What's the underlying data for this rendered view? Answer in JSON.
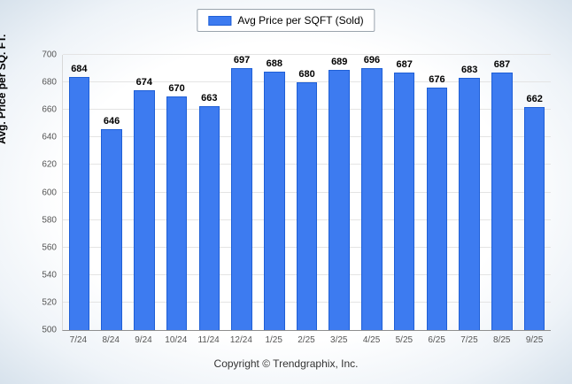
{
  "page": {
    "footer": "Copyright © Trendgraphix, Inc."
  },
  "legend": {
    "label": "Avg Price per SQFT (Sold)"
  },
  "colors": {
    "bar_fill": "#3d7bf0",
    "bar_border": "#1f5fd6"
  },
  "chart_data": {
    "type": "bar",
    "title": "",
    "categories": [
      "7/24",
      "8/24",
      "9/24",
      "10/24",
      "11/24",
      "12/24",
      "1/25",
      "2/25",
      "3/25",
      "4/25",
      "5/25",
      "6/25",
      "7/25",
      "8/25",
      "9/25"
    ],
    "values": [
      684,
      646,
      674,
      670,
      663,
      697,
      688,
      680,
      689,
      696,
      687,
      676,
      683,
      687,
      662
    ],
    "xlabel": "",
    "ylabel": "Avg. Price per SQ. FT.",
    "ylim": [
      500,
      700
    ],
    "ytick_step": 20,
    "grid": true,
    "legend_position": "top",
    "data_labels": true
  }
}
